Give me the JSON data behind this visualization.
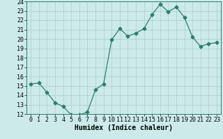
{
  "x": [
    0,
    1,
    2,
    3,
    4,
    5,
    6,
    7,
    8,
    9,
    10,
    11,
    12,
    13,
    14,
    15,
    16,
    17,
    18,
    19,
    20,
    21,
    22,
    23
  ],
  "y": [
    15.2,
    15.3,
    14.3,
    13.2,
    12.8,
    11.9,
    11.9,
    12.2,
    14.6,
    15.2,
    19.9,
    21.1,
    20.3,
    20.6,
    21.1,
    22.6,
    23.7,
    22.9,
    23.4,
    22.3,
    20.2,
    19.2,
    19.5,
    19.6
  ],
  "title": "",
  "xlabel": "Humidex (Indice chaleur)",
  "ylabel": "",
  "xlim": [
    -0.5,
    23.5
  ],
  "ylim": [
    12,
    24
  ],
  "yticks": [
    12,
    13,
    14,
    15,
    16,
    17,
    18,
    19,
    20,
    21,
    22,
    23,
    24
  ],
  "xticks": [
    0,
    1,
    2,
    3,
    4,
    5,
    6,
    7,
    8,
    9,
    10,
    11,
    12,
    13,
    14,
    15,
    16,
    17,
    18,
    19,
    20,
    21,
    22,
    23
  ],
  "line_color": "#2e7d6b",
  "marker": "D",
  "marker_size": 2.5,
  "bg_color": "#cceaea",
  "grid_color": "#aacccc",
  "title_fontsize": 7,
  "xlabel_fontsize": 7,
  "tick_fontsize": 6
}
